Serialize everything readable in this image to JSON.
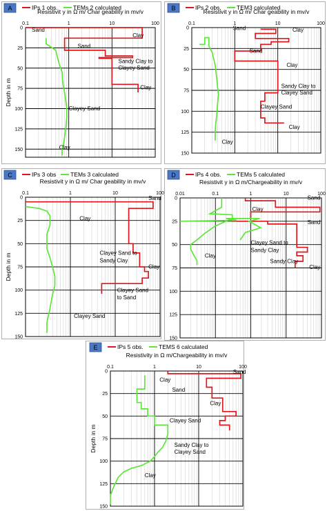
{
  "colors": {
    "obs": "#e0161b",
    "calc": "#5ce63a",
    "tag_fill": "#4a78c6",
    "tag_text": "#000000",
    "minor_grid": "#c9c9c9",
    "major_grid": "#000000",
    "frame": "#9a9a9a"
  },
  "shared": {
    "x_ticks": [
      "0.1",
      "1",
      "10",
      "100"
    ],
    "x_ticks_0": [
      "0.01",
      "0.1",
      "1",
      "10",
      "100"
    ],
    "y_ticks": [
      "0",
      "25",
      "50",
      "75",
      "100",
      "125",
      "150"
    ]
  },
  "chart_data": [
    {
      "type": "line",
      "panel": "A",
      "legend": [
        "IPs 1 obs.",
        "TEMs 2 calculated"
      ],
      "title": "Resistivit y in Ω m/ Char geability in mv/v",
      "ylabel": "Depth in m",
      "x_scale": "log",
      "xlim": [
        0.1,
        100
      ],
      "ylim": [
        0,
        160
      ],
      "series": [
        {
          "name": "IPs 1 obs.",
          "color_key": "obs",
          "x": [
            0.1,
            50,
            50,
            0.8,
            0.8,
            7,
            7,
            30,
            30,
            5,
            5,
            10,
            10,
            10,
            10,
            40,
            40
          ],
          "y": [
            0,
            0,
            13,
            13,
            28,
            28,
            35,
            35,
            37,
            37,
            38,
            38,
            65,
            65,
            70,
            70,
            80
          ]
        },
        {
          "name": "TEMs 2 calculated",
          "color_key": "calc",
          "x": [
            0.3,
            0.3,
            0.5,
            0.55,
            0.6,
            0.7,
            0.72,
            0.75,
            0.8,
            0.85,
            0.9,
            0.9,
            0.85,
            0.8,
            0.75,
            0.7,
            0.7
          ],
          "y": [
            13,
            20,
            28,
            37,
            45,
            55,
            65,
            72,
            80,
            90,
            100,
            110,
            125,
            135,
            145,
            150,
            158
          ]
        }
      ],
      "annotations": [
        {
          "text": "Sand",
          "x": 0.14,
          "y": 5
        },
        {
          "text": "Clay",
          "x": 30,
          "y": 12
        },
        {
          "text": "Sand",
          "x": 1.6,
          "y": 25
        },
        {
          "text": "Sandy Clay to",
          "x": 14,
          "y": 44
        },
        {
          "text": "Clayey Sand",
          "x": 14,
          "y": 52
        },
        {
          "text": "Clay",
          "x": 45,
          "y": 76
        },
        {
          "text": "Clayey Sand",
          "x": 1.0,
          "y": 102
        },
        {
          "text": "Clay",
          "x": 0.6,
          "y": 150
        }
      ]
    },
    {
      "type": "line",
      "panel": "B",
      "legend": [
        "IPs 2 obs.",
        "TEM3 calculated"
      ],
      "title": "Resistivit y in Ω m/ Char geability in mv/v",
      "ylabel": "",
      "x_scale": "log",
      "xlim": [
        0.1,
        100
      ],
      "ylim": [
        0,
        150
      ],
      "series": [
        {
          "name": "IPs 2 obs.",
          "color_key": "obs",
          "x": [
            4,
            9,
            9,
            3,
            3,
            18,
            18,
            7,
            7,
            4,
            4,
            1,
            1,
            10,
            10,
            5,
            5,
            4,
            4,
            4,
            4,
            5,
            5,
            14
          ],
          "y": [
            2,
            2,
            7,
            7,
            13,
            13,
            17,
            17,
            20,
            20,
            28,
            28,
            40,
            40,
            78,
            78,
            88,
            88,
            103,
            103,
            108,
            108,
            114,
            114
          ]
        },
        {
          "name": "TEM3 calculated",
          "color_key": "calc",
          "x": [
            0.15,
            0.2,
            0.2,
            0.25,
            0.25,
            0.3,
            0.35,
            0.38,
            0.4,
            0.42,
            0.4,
            0.38,
            0.36,
            0.35,
            0.35
          ],
          "y": [
            20,
            20,
            12,
            12,
            22,
            30,
            45,
            60,
            72,
            80,
            90,
            105,
            115,
            125,
            135
          ]
        }
      ],
      "annotations": [
        {
          "text": "Sand",
          "x": 0.9,
          "y": 3
        },
        {
          "text": "Clay",
          "x": 22,
          "y": 5
        },
        {
          "text": "Sand",
          "x": 2.2,
          "y": 30
        },
        {
          "text": "Clay",
          "x": 16,
          "y": 47
        },
        {
          "text": "Sandy Clay to",
          "x": 12,
          "y": 72
        },
        {
          "text": "Clayey Sand",
          "x": 12,
          "y": 80
        },
        {
          "text": "Clayey Sand",
          "x": 4,
          "y": 97
        },
        {
          "text": "Clay",
          "x": 18,
          "y": 121
        },
        {
          "text": "Clay",
          "x": 0.5,
          "y": 139
        }
      ]
    },
    {
      "type": "line",
      "panel": "C",
      "legend": [
        "IPs 3 obs",
        "TEMs 3 calculated"
      ],
      "title": "Resistivit y in Ω m/ Char geability in mv/v",
      "ylabel": "Depth in m",
      "x_scale": "log",
      "xlim": [
        0.1,
        100
      ],
      "ylim": [
        0,
        150
      ],
      "series": [
        {
          "name": "IPs 3 obs",
          "color_key": "obs",
          "x": [
            0.1,
            70,
            70,
            20,
            20,
            25,
            25,
            35,
            35,
            45,
            45,
            55,
            55,
            40,
            40,
            5,
            5
          ],
          "y": [
            5,
            5,
            12,
            12,
            50,
            50,
            60,
            60,
            75,
            75,
            80,
            80,
            87,
            87,
            93,
            93,
            104
          ]
        },
        {
          "name": "TEMs 3 calculated",
          "color_key": "calc",
          "x": [
            0.1,
            0.2,
            0.3,
            0.35,
            0.35,
            0.3,
            0.3,
            0.35,
            0.4,
            0.45,
            0.45,
            0.4,
            0.35,
            0.3,
            0.3
          ],
          "y": [
            10,
            12,
            15,
            20,
            30,
            40,
            55,
            65,
            75,
            85,
            95,
            105,
            120,
            135,
            146
          ]
        }
      ],
      "annotations": [
        {
          "text": "Sand",
          "x": 55,
          "y": 3
        },
        {
          "text": "Clay",
          "x": 1.6,
          "y": 25
        },
        {
          "text": "Clayey Sand to",
          "x": 4.5,
          "y": 62
        },
        {
          "text": "Sandy Clay",
          "x": 4.5,
          "y": 70
        },
        {
          "text": "Clay",
          "x": 55,
          "y": 77
        },
        {
          "text": "Clayey Sand",
          "x": 11,
          "y": 102
        },
        {
          "text": "to Sand",
          "x": 11,
          "y": 110
        },
        {
          "text": "Clayey Sand",
          "x": 1.2,
          "y": 130
        }
      ]
    },
    {
      "type": "line",
      "panel": "D",
      "legend": [
        "IPs 4 obs.",
        "TEMs 5 calculated"
      ],
      "title": "Resistivit y in Ω m/Chargeability in mv/v",
      "ylabel": "",
      "x_scale": "log",
      "xlim": [
        0.01,
        100
      ],
      "ylim": [
        0,
        150
      ],
      "series": [
        {
          "name": "IPs 4 obs.",
          "color_key": "obs",
          "x": [
            0.7,
            0.7,
            5,
            5,
            90,
            90,
            1,
            1,
            0.3,
            0.3,
            3,
            3,
            20,
            20,
            40,
            40,
            20,
            20,
            30,
            30,
            18,
            18
          ],
          "y": [
            0,
            3,
            3,
            10,
            10,
            15,
            15,
            22,
            22,
            25,
            25,
            28,
            28,
            53,
            53,
            58,
            58,
            62,
            62,
            68,
            68,
            75
          ]
        },
        {
          "name": "TEMs 5 calculated",
          "color_key": "calc",
          "x": [
            0.15,
            0.15,
            0.07,
            0.3,
            0.3,
            0.1,
            0.05,
            0.03,
            0.02,
            0.02,
            0.025,
            0.03,
            0.03
          ],
          "y": [
            0,
            10,
            17,
            18,
            22,
            30,
            38,
            45,
            50,
            55,
            62,
            67,
            72
          ]
        },
        {
          "name": "TEMs 5 calculated (b)",
          "color_key": "calc",
          "x": [
            0.01,
            0.4,
            0.2,
            1.8,
            0.9,
            1.9,
            0.7,
            0.5
          ],
          "y": [
            25,
            24,
            22,
            22,
            25,
            32,
            37,
            45
          ]
        }
      ],
      "annotations": [
        {
          "text": "Sand",
          "x": 40,
          "y": 2
        },
        {
          "text": "Clay",
          "x": 1.1,
          "y": 14
        },
        {
          "text": "Sand",
          "x": 40,
          "y": 28
        },
        {
          "text": "Clayey Sand to",
          "x": 1.0,
          "y": 50
        },
        {
          "text": "Sandy Clay",
          "x": 1.0,
          "y": 58
        },
        {
          "text": "Clay",
          "x": 0.05,
          "y": 64
        },
        {
          "text": "Sandy Clay",
          "x": 3.5,
          "y": 70
        },
        {
          "text": "Clay",
          "x": 45,
          "y": 76
        }
      ]
    },
    {
      "type": "line",
      "panel": "E",
      "legend": [
        "IPs 5 obs.",
        "TEMS 6 calculated"
      ],
      "title": "Resistivity in Ω m/Chargeability in mv/v",
      "ylabel": "Depth in m",
      "x_scale": "log",
      "xlim": [
        0.1,
        100
      ],
      "ylim": [
        0,
        150
      ],
      "series": [
        {
          "name": "IPs 5 obs.",
          "color_key": "obs",
          "x": [
            2,
            2,
            90,
            90,
            15,
            15,
            20,
            20,
            35,
            35,
            70,
            70,
            40,
            40,
            30,
            30,
            50,
            50
          ],
          "y": [
            0,
            3,
            3,
            8,
            8,
            18,
            18,
            30,
            30,
            45,
            45,
            50,
            50,
            55,
            55,
            60,
            60,
            66
          ]
        },
        {
          "name": "TEMS 6 calculated",
          "color_key": "calc",
          "x": [
            0.6,
            0.6,
            0.4,
            0.4,
            0.5,
            0.5,
            0.7,
            0.7,
            1.0,
            1.0,
            2.0,
            2.0,
            1.8,
            1.5,
            1.2,
            1.0,
            0.8,
            0.5,
            0.3,
            0.2,
            0.15,
            0.12,
            0.1,
            0.1
          ],
          "y": [
            5,
            20,
            20,
            35,
            35,
            42,
            42,
            50,
            50,
            60,
            60,
            70,
            78,
            85,
            90,
            95,
            100,
            105,
            108,
            112,
            118,
            128,
            138,
            148
          ]
        }
      ],
      "annotations": [
        {
          "text": "Sand",
          "x": 60,
          "y": 3
        },
        {
          "text": "Clay",
          "x": 1.3,
          "y": 12
        },
        {
          "text": "Sand",
          "x": 2.5,
          "y": 23
        },
        {
          "text": "Clay",
          "x": 18,
          "y": 38
        },
        {
          "text": "Clayey Sand",
          "x": 2.2,
          "y": 57
        },
        {
          "text": "Sandy Clay to",
          "x": 2.8,
          "y": 84
        },
        {
          "text": "Clayey Sand",
          "x": 2.8,
          "y": 92
        },
        {
          "text": "Clay",
          "x": 0.6,
          "y": 118
        }
      ]
    }
  ]
}
